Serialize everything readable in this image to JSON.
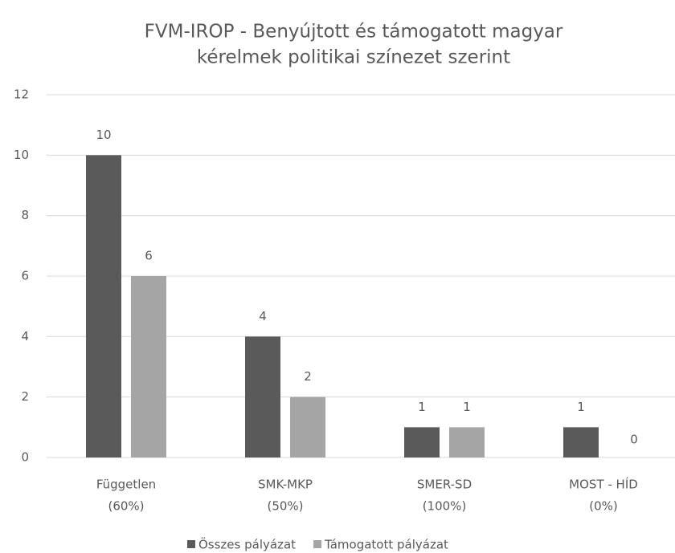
{
  "chart_data": {
    "type": "bar",
    "title": [
      "FVM-IROP - Benyújtott és támogatott magyar",
      "kérelmek politikai színezet szerint"
    ],
    "categories": [
      [
        "Független",
        "(60%)"
      ],
      [
        "SMK-MKP",
        "(50%)"
      ],
      [
        "SMER-SD",
        "(100%)"
      ],
      [
        "MOST - HÍD",
        "(0%)"
      ]
    ],
    "series": [
      {
        "name": "Összes pályázat",
        "color": "#5a5a5a",
        "values": [
          10,
          4,
          1,
          1
        ]
      },
      {
        "name": "Támogatott pályázat",
        "color": "#a5a5a5",
        "values": [
          6,
          2,
          1,
          0
        ]
      }
    ],
    "ylim": [
      0,
      12
    ],
    "yticks": [
      0,
      2,
      4,
      6,
      8,
      10,
      12
    ],
    "grid": true,
    "legend": "bottom"
  }
}
